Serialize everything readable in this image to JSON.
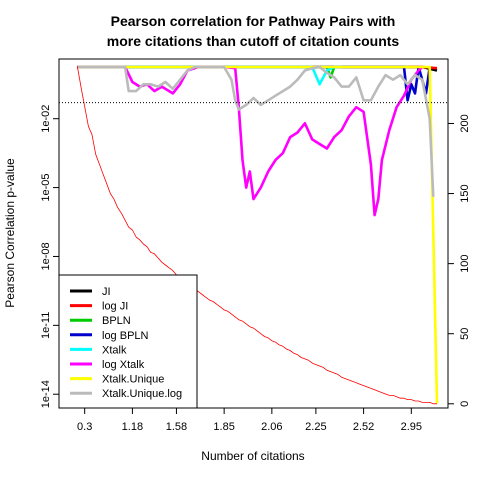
{
  "chart_data": {
    "type": "line",
    "title_line1": "Pearson correlation for Pathway Pairs with",
    "title_line2": "more citations than cutoff of citation counts",
    "xlabel": "Number of citations",
    "ylabel": "Pearson Correlation p-value",
    "x_ticks": [
      "0.3",
      "1.18",
      "1.58",
      "1.85",
      "2.06",
      "2.25",
      "2.52",
      "2.95"
    ],
    "y_left_ticks": [
      "1e-14",
      "1e-11",
      "1e-08",
      "1e-05",
      "1e-02"
    ],
    "y_left_log10_range": [
      -14.6,
      0.6
    ],
    "y_right_ticks": [
      "0",
      "50",
      "100",
      "150",
      "200"
    ],
    "y_right_range": [
      -3,
      246
    ],
    "reference_line_log10": -1.3,
    "legend_position": "bottom-left",
    "series": [
      {
        "name": "JI",
        "color": "#000000",
        "axis": "left",
        "points": [
          [
            0,
            0.25
          ],
          [
            80,
            0.25
          ],
          [
            94,
            0.25
          ],
          [
            98,
            0.1
          ]
        ]
      },
      {
        "name": "log JI",
        "color": "#ff0000",
        "axis": "left",
        "points": [
          [
            0,
            0.25
          ],
          [
            80,
            0.25
          ],
          [
            94,
            0.25
          ],
          [
            98,
            0.2
          ]
        ]
      },
      {
        "name": "BPLN",
        "color": "#00cc00",
        "axis": "left",
        "points": [
          [
            0,
            0.25
          ],
          [
            68,
            0.25
          ],
          [
            69,
            -0.2
          ],
          [
            70,
            0.25
          ],
          [
            90,
            0.25
          ]
        ]
      },
      {
        "name": "log BPLN",
        "color": "#0000cc",
        "axis": "left",
        "points": [
          [
            0,
            0.25
          ],
          [
            89,
            0.25
          ],
          [
            90,
            -1.2
          ],
          [
            91,
            -0.5
          ],
          [
            92,
            -0.9
          ],
          [
            93,
            0.25
          ],
          [
            95,
            -0.9
          ],
          [
            96,
            0.25
          ]
        ]
      },
      {
        "name": "Xtalk",
        "color": "#00ffff",
        "axis": "left",
        "points": [
          [
            0,
            0.25
          ],
          [
            64,
            0.25
          ],
          [
            66,
            -0.5
          ],
          [
            68,
            0.1
          ],
          [
            70,
            0.25
          ],
          [
            72,
            0.25
          ]
        ]
      },
      {
        "name": "log Xtalk",
        "color": "#ff00ff",
        "axis": "left",
        "points": [
          [
            0,
            0.25
          ],
          [
            13,
            0.25
          ],
          [
            15,
            -0.4
          ],
          [
            17,
            -0.6
          ],
          [
            19,
            -0.5
          ],
          [
            21,
            -0.8
          ],
          [
            23,
            -0.6
          ],
          [
            26,
            -0.9
          ],
          [
            28,
            -0.5
          ],
          [
            30,
            0.1
          ],
          [
            33,
            0.25
          ],
          [
            40,
            0.25
          ],
          [
            43,
            0.2
          ],
          [
            44,
            -1.5
          ],
          [
            45,
            -3.8
          ],
          [
            46,
            -5
          ],
          [
            47,
            -4.3
          ],
          [
            48,
            -5.5
          ],
          [
            50,
            -5
          ],
          [
            52,
            -4.3
          ],
          [
            54,
            -3.8
          ],
          [
            56,
            -3.5
          ],
          [
            58,
            -2.8
          ],
          [
            60,
            -2.6
          ],
          [
            62,
            -2.2
          ],
          [
            64,
            -2.9
          ],
          [
            66,
            -3.1
          ],
          [
            68,
            -3.3
          ],
          [
            70,
            -2.8
          ],
          [
            72,
            -2.5
          ],
          [
            74,
            -1.9
          ],
          [
            76,
            -1.5
          ],
          [
            78,
            -1.7
          ],
          [
            80,
            -4.0
          ],
          [
            81,
            -6.2
          ],
          [
            82,
            -5.5
          ],
          [
            83,
            -3.8
          ],
          [
            85,
            -2.5
          ],
          [
            87,
            -1.5
          ],
          [
            89,
            -1.0
          ],
          [
            91,
            -0.3
          ],
          [
            93,
            0.1
          ],
          [
            94,
            0.25
          ]
        ]
      },
      {
        "name": "Xtalk.Unique",
        "color": "#ffff00",
        "axis": "left",
        "points": [
          [
            0,
            0.25
          ],
          [
            96,
            0.25
          ],
          [
            98,
            -14.4
          ]
        ]
      },
      {
        "name": "Xtalk.Unique.log",
        "color": "#bbbbbb",
        "axis": "left",
        "points": [
          [
            0,
            0.25
          ],
          [
            13,
            0.25
          ],
          [
            14,
            -0.8
          ],
          [
            16,
            -0.8
          ],
          [
            18,
            -0.5
          ],
          [
            20,
            -0.5
          ],
          [
            22,
            -0.6
          ],
          [
            24,
            -0.4
          ],
          [
            26,
            -0.7
          ],
          [
            28,
            -0.3
          ],
          [
            30,
            0.1
          ],
          [
            32,
            0.25
          ],
          [
            40,
            0.25
          ],
          [
            42,
            -0.3
          ],
          [
            43,
            -1.2
          ],
          [
            44,
            -1.6
          ],
          [
            46,
            -1.4
          ],
          [
            48,
            -1.1
          ],
          [
            50,
            -1.4
          ],
          [
            52,
            -1.2
          ],
          [
            54,
            -1.0
          ],
          [
            56,
            -0.8
          ],
          [
            58,
            -0.6
          ],
          [
            60,
            -0.3
          ],
          [
            62,
            0.1
          ],
          [
            64,
            0.2
          ],
          [
            66,
            0.25
          ],
          [
            68,
            0.0
          ],
          [
            70,
            -0.2
          ],
          [
            72,
            -0.6
          ],
          [
            74,
            -0.6
          ],
          [
            76,
            -0.2
          ],
          [
            78,
            -1.2
          ],
          [
            80,
            -1.2
          ],
          [
            82,
            -0.6
          ],
          [
            84,
            -0.1
          ],
          [
            86,
            -0.3
          ],
          [
            88,
            -0.1
          ],
          [
            90,
            -0.5
          ],
          [
            92,
            -0.1
          ],
          [
            94,
            -0.3
          ],
          [
            96,
            -2.0
          ],
          [
            97,
            -5.4
          ]
        ]
      },
      {
        "name": "",
        "color": "#ff0000",
        "axis": "right",
        "style": "thin",
        "points": [
          [
            0,
            241
          ],
          [
            1,
            226
          ],
          [
            2,
            212
          ],
          [
            3,
            198
          ],
          [
            4,
            192
          ],
          [
            5,
            178
          ],
          [
            6,
            171
          ],
          [
            7,
            164
          ],
          [
            8,
            157
          ],
          [
            9,
            150
          ],
          [
            10,
            146
          ],
          [
            11,
            140
          ],
          [
            12,
            136
          ],
          [
            13,
            131
          ],
          [
            14,
            126
          ],
          [
            15,
            124
          ],
          [
            16,
            119
          ],
          [
            17,
            117
          ],
          [
            18,
            114
          ],
          [
            19,
            112
          ],
          [
            20,
            108
          ],
          [
            21,
            107
          ],
          [
            22,
            104
          ],
          [
            23,
            101
          ],
          [
            24,
            99
          ],
          [
            25,
            97
          ],
          [
            26,
            95
          ],
          [
            27,
            92
          ],
          [
            28,
            90
          ],
          [
            29,
            88
          ],
          [
            30,
            86
          ],
          [
            31,
            84
          ],
          [
            32,
            82
          ],
          [
            33,
            80
          ],
          [
            34,
            78
          ],
          [
            35,
            76
          ],
          [
            36,
            74
          ],
          [
            37,
            73
          ],
          [
            38,
            71
          ],
          [
            39,
            69
          ],
          [
            40,
            67
          ],
          [
            41,
            66
          ],
          [
            42,
            64
          ],
          [
            43,
            62
          ],
          [
            44,
            60
          ],
          [
            45,
            59
          ],
          [
            46,
            57
          ],
          [
            47,
            55
          ],
          [
            48,
            54
          ],
          [
            49,
            52
          ],
          [
            50,
            50
          ],
          [
            51,
            48
          ],
          [
            52,
            47
          ],
          [
            53,
            45
          ],
          [
            54,
            44
          ],
          [
            55,
            42
          ],
          [
            56,
            41
          ],
          [
            57,
            39
          ],
          [
            58,
            38
          ],
          [
            59,
            36
          ],
          [
            60,
            35
          ],
          [
            61,
            33
          ],
          [
            62,
            32
          ],
          [
            63,
            31
          ],
          [
            64,
            29
          ],
          [
            65,
            28
          ],
          [
            66,
            27
          ],
          [
            67,
            26
          ],
          [
            68,
            24
          ],
          [
            69,
            23
          ],
          [
            70,
            22
          ],
          [
            71,
            21
          ],
          [
            72,
            19
          ],
          [
            73,
            18
          ],
          [
            74,
            17
          ],
          [
            75,
            16
          ],
          [
            76,
            15
          ],
          [
            77,
            14
          ],
          [
            78,
            13
          ],
          [
            79,
            12
          ],
          [
            80,
            11
          ],
          [
            81,
            10
          ],
          [
            82,
            9
          ],
          [
            83,
            8
          ],
          [
            84,
            7
          ],
          [
            85,
            6
          ],
          [
            86,
            6
          ],
          [
            87,
            5
          ],
          [
            88,
            4
          ],
          [
            89,
            4
          ],
          [
            90,
            3
          ],
          [
            91,
            3
          ],
          [
            92,
            2
          ],
          [
            93,
            2
          ],
          [
            94,
            1
          ],
          [
            95,
            1
          ],
          [
            96,
            1
          ],
          [
            97,
            0
          ],
          [
            98,
            0
          ]
        ]
      }
    ],
    "x_index_range": [
      -5,
      101
    ],
    "x_tick_positions": [
      2,
      15,
      27,
      40,
      53,
      65,
      78,
      91
    ]
  }
}
